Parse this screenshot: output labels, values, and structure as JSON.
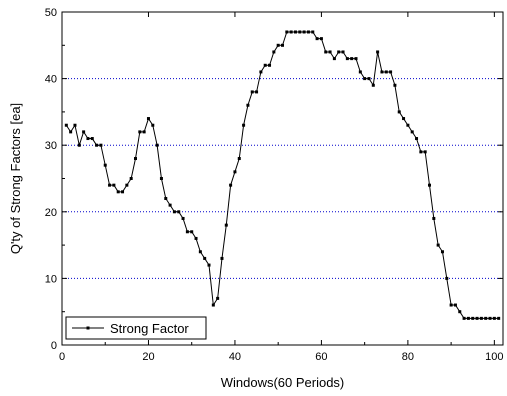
{
  "chart_data": {
    "type": "line",
    "xlabel": "Windows(60 Periods)",
    "ylabel": "Q'ty of Strong Factors [ea]",
    "xlim": [
      0,
      102
    ],
    "ylim": [
      0,
      50
    ],
    "xticks": [
      0,
      20,
      40,
      60,
      80,
      100
    ],
    "yticks": [
      0,
      10,
      20,
      30,
      40,
      50
    ],
    "grid": "horizontal dotted (blue) at 10, 20, 30, 40",
    "legend_position": "bottom-left",
    "colors": {
      "series": "#000000",
      "grid": "#0000cc",
      "frame": "#000000"
    },
    "series": [
      {
        "name": "Strong Factor",
        "marker": "square",
        "x": [
          1,
          2,
          3,
          4,
          5,
          6,
          7,
          8,
          9,
          10,
          11,
          12,
          13,
          14,
          15,
          16,
          17,
          18,
          19,
          20,
          21,
          22,
          23,
          24,
          25,
          26,
          27,
          28,
          29,
          30,
          31,
          32,
          33,
          34,
          35,
          36,
          37,
          38,
          39,
          40,
          41,
          42,
          43,
          44,
          45,
          46,
          47,
          48,
          49,
          50,
          51,
          52,
          53,
          54,
          55,
          56,
          57,
          58,
          59,
          60,
          61,
          62,
          63,
          64,
          65,
          66,
          67,
          68,
          69,
          70,
          71,
          72,
          73,
          74,
          75,
          76,
          77,
          78,
          79,
          80,
          81,
          82,
          83,
          84,
          85,
          86,
          87,
          88,
          89,
          90,
          91,
          92,
          93,
          94,
          95,
          96,
          97,
          98,
          99,
          100,
          101
        ],
        "y": [
          33,
          32,
          33,
          30,
          32,
          31,
          31,
          30,
          30,
          27,
          24,
          24,
          23,
          23,
          24,
          25,
          28,
          32,
          32,
          34,
          33,
          30,
          25,
          22,
          21,
          20,
          20,
          19,
          17,
          17,
          16,
          14,
          13,
          12,
          6,
          7,
          13,
          18,
          24,
          26,
          28,
          33,
          36,
          38,
          38,
          41,
          42,
          42,
          44,
          45,
          45,
          47,
          47,
          47,
          47,
          47,
          47,
          47,
          46,
          46,
          44,
          44,
          43,
          44,
          44,
          43,
          43,
          43,
          41,
          40,
          40,
          39,
          44,
          41,
          41,
          41,
          39,
          35,
          34,
          33,
          32,
          31,
          29,
          29,
          24,
          19,
          15,
          14,
          10,
          6,
          6,
          5,
          4,
          4,
          4,
          4,
          4,
          4,
          4,
          4,
          4
        ]
      }
    ]
  }
}
